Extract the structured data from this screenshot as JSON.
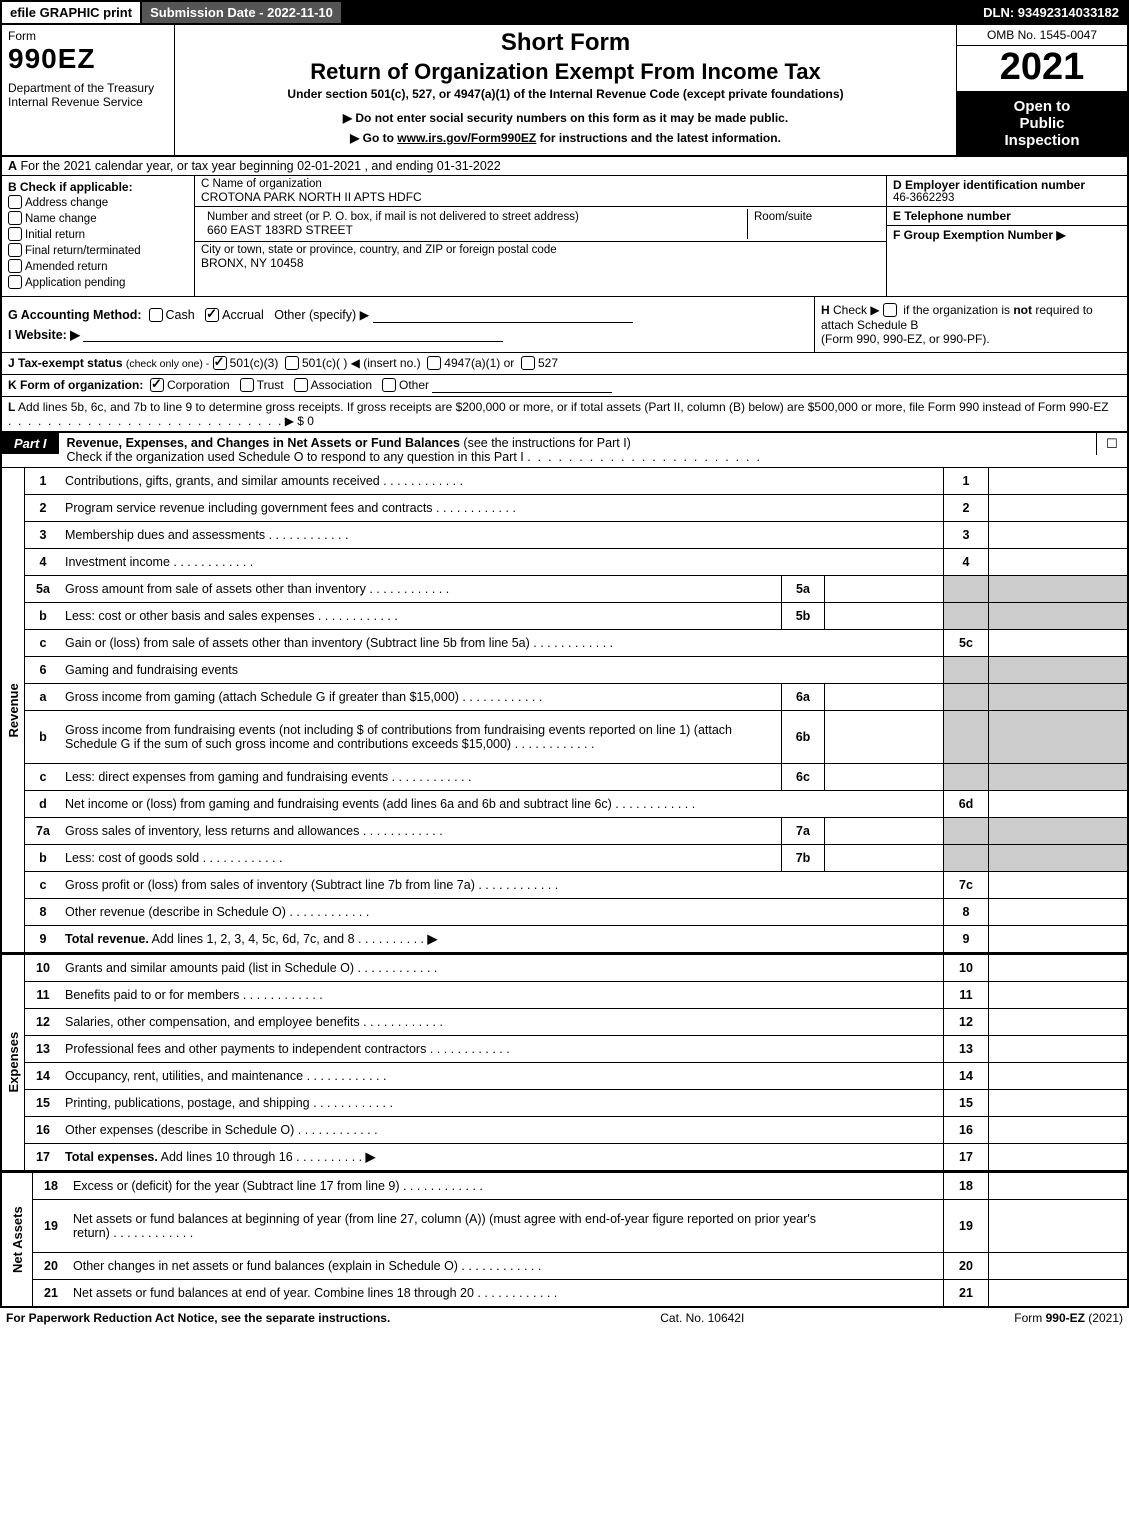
{
  "topbar": {
    "efile": "efile GRAPHIC print",
    "submission_label": "Submission Date - 2022-11-10",
    "dln": "DLN: 93492314033182"
  },
  "header": {
    "form_word": "Form",
    "form_number": "990EZ",
    "dept": "Department of the Treasury",
    "irs": "Internal Revenue Service",
    "short_form": "Short Form",
    "return_title": "Return of Organization Exempt From Income Tax",
    "under": "Under section 501(c), 527, or 4947(a)(1) of the Internal Revenue Code (except private foundations)",
    "warn": "▶ Do not enter social security numbers on this form as it may be made public.",
    "goto_pre": "▶ Go to ",
    "goto_link": "www.irs.gov/Form990EZ",
    "goto_post": " for instructions and the latest information.",
    "omb": "OMB No. 1545-0047",
    "year": "2021",
    "open1": "Open to",
    "open2": "Public",
    "open3": "Inspection"
  },
  "A": {
    "label": "A",
    "text": "For the 2021 calendar year, or tax year beginning 02-01-2021 , and ending 01-31-2022"
  },
  "B": {
    "label": "B",
    "header": "Check if applicable:",
    "opts": [
      {
        "label": "Address change",
        "checked": false
      },
      {
        "label": "Name change",
        "checked": false
      },
      {
        "label": "Initial return",
        "checked": false
      },
      {
        "label": "Final return/terminated",
        "checked": false
      },
      {
        "label": "Amended return",
        "checked": false
      },
      {
        "label": "Application pending",
        "checked": false
      }
    ]
  },
  "C": {
    "name_label": "C Name of organization",
    "name": "CROTONA PARK NORTH II APTS HDFC",
    "street_label": "Number and street (or P. O. box, if mail is not delivered to street address)",
    "room_label": "Room/suite",
    "street": "660 EAST 183RD STREET",
    "city_label": "City or town, state or province, country, and ZIP or foreign postal code",
    "city": "BRONX, NY  10458"
  },
  "D": {
    "label": "D Employer identification number",
    "value": "46-3662293"
  },
  "E": {
    "label": "E Telephone number",
    "value": ""
  },
  "F": {
    "label": "F Group Exemption Number   ▶",
    "value": ""
  },
  "G": {
    "label": "G Accounting Method:",
    "cash": "Cash",
    "accrual": "Accrual",
    "other": "Other (specify) ▶",
    "accrual_checked": true
  },
  "H": {
    "label": "H",
    "text1": "Check ▶ ",
    "text2": " if the organization is ",
    "not": "not",
    "text3": " required to attach Schedule B",
    "text4": "(Form 990, 990-EZ, or 990-PF)."
  },
  "I": {
    "label": "I Website: ▶",
    "value": ""
  },
  "J": {
    "label": "J Tax-exempt status",
    "sub": "(check only one) -",
    "o1": "501(c)(3)",
    "o2": "501(c)(    ) ◀ (insert no.)",
    "o3": "4947(a)(1) or",
    "o4": "527",
    "o1_checked": true
  },
  "K": {
    "label": "K Form of organization:",
    "o1": "Corporation",
    "o2": "Trust",
    "o3": "Association",
    "o4": "Other",
    "o1_checked": true
  },
  "L": {
    "label": "L",
    "text": "Add lines 5b, 6c, and 7b to line 9 to determine gross receipts. If gross receipts are $200,000 or more, or if total assets (Part II, column (B) below) are $500,000 or more, file Form 990 instead of Form 990-EZ",
    "amount": "▶ $ 0"
  },
  "partI": {
    "label": "Part I",
    "title_bold": "Revenue, Expenses, and Changes in Net Assets or Fund Balances",
    "title_rest": " (see the instructions for Part I)",
    "check_text": "Check if the organization used Schedule O to respond to any question in this Part I",
    "check_box": "☐"
  },
  "side_labels": {
    "revenue": "Revenue",
    "expenses": "Expenses",
    "netassets": "Net Assets"
  },
  "rows": [
    {
      "ln": "1",
      "desc": "Contributions, gifts, grants, and similar amounts received",
      "num": "1",
      "amt": ""
    },
    {
      "ln": "2",
      "desc": "Program service revenue including government fees and contracts",
      "num": "2",
      "amt": ""
    },
    {
      "ln": "3",
      "desc": "Membership dues and assessments",
      "num": "3",
      "amt": ""
    },
    {
      "ln": "4",
      "desc": "Investment income",
      "num": "4",
      "amt": ""
    },
    {
      "ln": "5a",
      "desc": "Gross amount from sale of assets other than inventory",
      "sub": "5a",
      "subval": "",
      "shade_num": true
    },
    {
      "ln": "b",
      "desc": "Less: cost or other basis and sales expenses",
      "sub": "5b",
      "subval": "",
      "shade_num": true
    },
    {
      "ln": "c",
      "desc": "Gain or (loss) from sale of assets other than inventory (Subtract line 5b from line 5a)",
      "num": "5c",
      "amt": ""
    },
    {
      "ln": "6",
      "desc": "Gaming and fundraising events",
      "header": true,
      "shade_num": true
    },
    {
      "ln": "a",
      "desc": "Gross income from gaming (attach Schedule G if greater than $15,000)",
      "sub": "6a",
      "subval": "",
      "shade_num": true
    },
    {
      "ln": "b",
      "desc": "Gross income from fundraising events (not including $               of contributions from fundraising events reported on line 1) (attach Schedule G if the sum of such gross income and contributions exceeds $15,000)",
      "sub": "6b",
      "subval": "",
      "shade_num": true,
      "tall": true
    },
    {
      "ln": "c",
      "desc": "Less: direct expenses from gaming and fundraising events",
      "sub": "6c",
      "subval": "",
      "shade_num": true
    },
    {
      "ln": "d",
      "desc": "Net income or (loss) from gaming and fundraising events (add lines 6a and 6b and subtract line 6c)",
      "num": "6d",
      "amt": ""
    },
    {
      "ln": "7a",
      "desc": "Gross sales of inventory, less returns and allowances",
      "sub": "7a",
      "subval": "",
      "shade_num": true
    },
    {
      "ln": "b",
      "desc": "Less: cost of goods sold",
      "sub": "7b",
      "subval": "",
      "shade_num": true
    },
    {
      "ln": "c",
      "desc": "Gross profit or (loss) from sales of inventory (Subtract line 7b from line 7a)",
      "num": "7c",
      "amt": ""
    },
    {
      "ln": "8",
      "desc": "Other revenue (describe in Schedule O)",
      "num": "8",
      "amt": ""
    },
    {
      "ln": "9",
      "desc": "Total revenue. Add lines 1, 2, 3, 4, 5c, 6d, 7c, and 8",
      "num": "9",
      "amt": "",
      "bold": true,
      "arrow": true
    }
  ],
  "exp_rows": [
    {
      "ln": "10",
      "desc": "Grants and similar amounts paid (list in Schedule O)",
      "num": "10"
    },
    {
      "ln": "11",
      "desc": "Benefits paid to or for members",
      "num": "11"
    },
    {
      "ln": "12",
      "desc": "Salaries, other compensation, and employee benefits",
      "num": "12"
    },
    {
      "ln": "13",
      "desc": "Professional fees and other payments to independent contractors",
      "num": "13"
    },
    {
      "ln": "14",
      "desc": "Occupancy, rent, utilities, and maintenance",
      "num": "14"
    },
    {
      "ln": "15",
      "desc": "Printing, publications, postage, and shipping",
      "num": "15"
    },
    {
      "ln": "16",
      "desc": "Other expenses (describe in Schedule O)",
      "num": "16"
    },
    {
      "ln": "17",
      "desc": "Total expenses. Add lines 10 through 16",
      "num": "17",
      "bold": true,
      "arrow": true
    }
  ],
  "na_rows": [
    {
      "ln": "18",
      "desc": "Excess or (deficit) for the year (Subtract line 17 from line 9)",
      "num": "18"
    },
    {
      "ln": "19",
      "desc": "Net assets or fund balances at beginning of year (from line 27, column (A)) (must agree with end-of-year figure reported on prior year's return)",
      "num": "19",
      "tall": true
    },
    {
      "ln": "20",
      "desc": "Other changes in net assets or fund balances (explain in Schedule O)",
      "num": "20"
    },
    {
      "ln": "21",
      "desc": "Net assets or fund balances at end of year. Combine lines 18 through 20",
      "num": "21"
    }
  ],
  "footer": {
    "left": "For Paperwork Reduction Act Notice, see the separate instructions.",
    "center": "Cat. No. 10642I",
    "right_pre": "Form ",
    "right_form": "990-EZ",
    "right_post": " (2021)"
  },
  "colors": {
    "black": "#000000",
    "white": "#ffffff",
    "dark_gray": "#555555",
    "shade": "#cccccc"
  }
}
